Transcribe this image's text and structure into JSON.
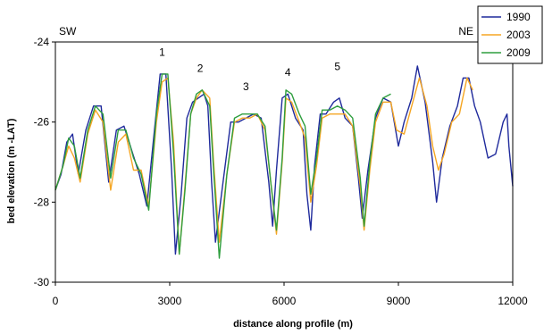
{
  "chart_data": {
    "type": "line",
    "title": "",
    "xlabel": "distance along profile (m)",
    "ylabel": "bed elevation (m -LAT)",
    "xlim": [
      0,
      12000
    ],
    "ylim": [
      -30,
      -24
    ],
    "xticks": [
      0,
      3000,
      6000,
      9000,
      12000
    ],
    "yticks": [
      -30,
      -28,
      -26,
      -24
    ],
    "x_tick_labels": [
      "0",
      "3000",
      "6000",
      "9000",
      "12000"
    ],
    "y_tick_labels": [
      "-30",
      "-28",
      "-26",
      "-24"
    ],
    "grid": false,
    "legend_position": "top-right",
    "corner_labels": {
      "left": "SW",
      "right": "NE"
    },
    "annotations": [
      {
        "text": "1",
        "x": 2800,
        "y": -24.35
      },
      {
        "text": "2",
        "x": 3800,
        "y": -24.75
      },
      {
        "text": "3",
        "x": 5000,
        "y": -25.2
      },
      {
        "text": "4",
        "x": 6100,
        "y": -24.85
      },
      {
        "text": "5",
        "x": 7400,
        "y": -24.7
      }
    ],
    "series": [
      {
        "name": "1990",
        "color": "#1f2a9c",
        "points": [
          [
            0,
            -27.7
          ],
          [
            150,
            -27.3
          ],
          [
            300,
            -26.5
          ],
          [
            450,
            -26.3
          ],
          [
            600,
            -27.3
          ],
          [
            800,
            -26.2
          ],
          [
            1000,
            -25.6
          ],
          [
            1200,
            -25.6
          ],
          [
            1400,
            -27.5
          ],
          [
            1600,
            -26.2
          ],
          [
            1800,
            -26.1
          ],
          [
            2000,
            -26.7
          ],
          [
            2200,
            -27.3
          ],
          [
            2400,
            -28.1
          ],
          [
            2600,
            -26.2
          ],
          [
            2750,
            -24.8
          ],
          [
            2900,
            -24.8
          ],
          [
            3050,
            -27.2
          ],
          [
            3150,
            -29.3
          ],
          [
            3300,
            -27.8
          ],
          [
            3450,
            -25.9
          ],
          [
            3600,
            -25.5
          ],
          [
            3750,
            -25.4
          ],
          [
            3900,
            -25.3
          ],
          [
            4000,
            -25.6
          ],
          [
            4100,
            -27.5
          ],
          [
            4200,
            -29.0
          ],
          [
            4400,
            -27.5
          ],
          [
            4600,
            -26.0
          ],
          [
            4800,
            -26.0
          ],
          [
            5000,
            -25.9
          ],
          [
            5200,
            -25.8
          ],
          [
            5400,
            -25.9
          ],
          [
            5600,
            -27.5
          ],
          [
            5700,
            -28.6
          ],
          [
            5800,
            -27.2
          ],
          [
            5950,
            -25.4
          ],
          [
            6100,
            -25.3
          ],
          [
            6300,
            -25.9
          ],
          [
            6500,
            -26.2
          ],
          [
            6600,
            -27.8
          ],
          [
            6700,
            -28.7
          ],
          [
            6800,
            -27.1
          ],
          [
            6950,
            -25.8
          ],
          [
            7100,
            -25.8
          ],
          [
            7300,
            -25.5
          ],
          [
            7450,
            -25.4
          ],
          [
            7600,
            -25.9
          ],
          [
            7800,
            -26.1
          ],
          [
            7950,
            -27.4
          ],
          [
            8050,
            -28.4
          ],
          [
            8200,
            -27.2
          ],
          [
            8400,
            -25.9
          ],
          [
            8600,
            -25.4
          ],
          [
            8800,
            -25.5
          ],
          [
            9000,
            -26.6
          ],
          [
            9150,
            -26.0
          ],
          [
            9350,
            -25.4
          ],
          [
            9500,
            -24.6
          ],
          [
            9700,
            -25.5
          ],
          [
            9900,
            -27.0
          ],
          [
            10000,
            -28.0
          ],
          [
            10150,
            -26.9
          ],
          [
            10350,
            -26.1
          ],
          [
            10550,
            -25.6
          ],
          [
            10700,
            -24.9
          ],
          [
            10850,
            -24.9
          ],
          [
            11000,
            -25.6
          ],
          [
            11150,
            -26.0
          ],
          [
            11350,
            -26.9
          ],
          [
            11550,
            -26.8
          ],
          [
            11750,
            -26.0
          ],
          [
            11850,
            -25.8
          ],
          [
            11900,
            -26.6
          ],
          [
            12000,
            -27.6
          ]
        ]
      },
      {
        "name": "2003",
        "color": "#f5a623",
        "points": [
          [
            0,
            -27.7
          ],
          [
            200,
            -27.1
          ],
          [
            350,
            -26.6
          ],
          [
            500,
            -26.9
          ],
          [
            650,
            -27.5
          ],
          [
            850,
            -26.3
          ],
          [
            1050,
            -25.7
          ],
          [
            1250,
            -26.0
          ],
          [
            1450,
            -27.7
          ],
          [
            1650,
            -26.5
          ],
          [
            1850,
            -26.3
          ],
          [
            2050,
            -27.2
          ],
          [
            2250,
            -27.2
          ],
          [
            2450,
            -28.1
          ],
          [
            2650,
            -26.0
          ],
          [
            2800,
            -25.0
          ],
          [
            2950,
            -24.9
          ],
          [
            3100,
            -26.5
          ],
          [
            3250,
            -29.3
          ],
          [
            3400,
            -27.6
          ],
          [
            3550,
            -25.8
          ],
          [
            3700,
            -25.4
          ],
          [
            3850,
            -25.2
          ],
          [
            4050,
            -25.4
          ],
          [
            4150,
            -27.0
          ],
          [
            4300,
            -29.0
          ],
          [
            4500,
            -27.3
          ],
          [
            4700,
            -26.0
          ],
          [
            4900,
            -25.9
          ],
          [
            5100,
            -25.9
          ],
          [
            5300,
            -25.8
          ],
          [
            5500,
            -26.2
          ],
          [
            5650,
            -27.5
          ],
          [
            5800,
            -28.8
          ],
          [
            5950,
            -27.0
          ],
          [
            6050,
            -25.4
          ],
          [
            6200,
            -25.5
          ],
          [
            6400,
            -26.0
          ],
          [
            6550,
            -26.4
          ],
          [
            6700,
            -28.0
          ],
          [
            6850,
            -27.1
          ],
          [
            7000,
            -25.9
          ],
          [
            7200,
            -25.8
          ],
          [
            7400,
            -25.8
          ],
          [
            7600,
            -25.8
          ],
          [
            7800,
            -26.1
          ],
          [
            8000,
            -27.6
          ],
          [
            8100,
            -28.7
          ],
          [
            8250,
            -27.2
          ],
          [
            8400,
            -26.0
          ],
          [
            8600,
            -25.5
          ],
          [
            8800,
            -25.5
          ],
          [
            8950,
            -26.2
          ],
          [
            9150,
            -26.3
          ],
          [
            9350,
            -25.6
          ],
          [
            9550,
            -24.9
          ],
          [
            9750,
            -25.6
          ],
          [
            9900,
            -26.6
          ],
          [
            10050,
            -27.2
          ],
          [
            10200,
            -26.8
          ],
          [
            10400,
            -26.0
          ],
          [
            10600,
            -25.8
          ],
          [
            10800,
            -24.9
          ],
          [
            10950,
            -25.2
          ]
        ]
      },
      {
        "name": "2009",
        "color": "#2e9e3e",
        "points": [
          [
            0,
            -27.7
          ],
          [
            200,
            -27.1
          ],
          [
            350,
            -26.4
          ],
          [
            500,
            -26.6
          ],
          [
            650,
            -27.4
          ],
          [
            850,
            -26.2
          ],
          [
            1050,
            -25.6
          ],
          [
            1250,
            -25.8
          ],
          [
            1450,
            -27.4
          ],
          [
            1650,
            -26.2
          ],
          [
            1850,
            -26.2
          ],
          [
            2050,
            -26.9
          ],
          [
            2250,
            -27.3
          ],
          [
            2450,
            -28.2
          ],
          [
            2650,
            -25.8
          ],
          [
            2800,
            -24.8
          ],
          [
            2950,
            -24.8
          ],
          [
            3100,
            -26.8
          ],
          [
            3250,
            -29.3
          ],
          [
            3400,
            -27.7
          ],
          [
            3550,
            -25.8
          ],
          [
            3700,
            -25.3
          ],
          [
            3850,
            -25.2
          ],
          [
            4050,
            -25.6
          ],
          [
            4150,
            -27.2
          ],
          [
            4300,
            -29.4
          ],
          [
            4500,
            -27.3
          ],
          [
            4700,
            -25.9
          ],
          [
            4900,
            -25.8
          ],
          [
            5100,
            -25.8
          ],
          [
            5300,
            -25.8
          ],
          [
            5500,
            -26.1
          ],
          [
            5650,
            -27.5
          ],
          [
            5800,
            -28.7
          ],
          [
            5950,
            -26.9
          ],
          [
            6050,
            -25.2
          ],
          [
            6200,
            -25.3
          ],
          [
            6400,
            -25.8
          ],
          [
            6550,
            -26.1
          ],
          [
            6700,
            -27.8
          ],
          [
            6850,
            -26.9
          ],
          [
            7000,
            -25.7
          ],
          [
            7200,
            -25.7
          ],
          [
            7400,
            -25.6
          ],
          [
            7600,
            -25.7
          ],
          [
            7800,
            -25.9
          ],
          [
            8000,
            -27.4
          ],
          [
            8100,
            -28.6
          ],
          [
            8250,
            -27.0
          ],
          [
            8400,
            -25.8
          ],
          [
            8600,
            -25.4
          ],
          [
            8800,
            -25.3
          ]
        ]
      }
    ]
  }
}
